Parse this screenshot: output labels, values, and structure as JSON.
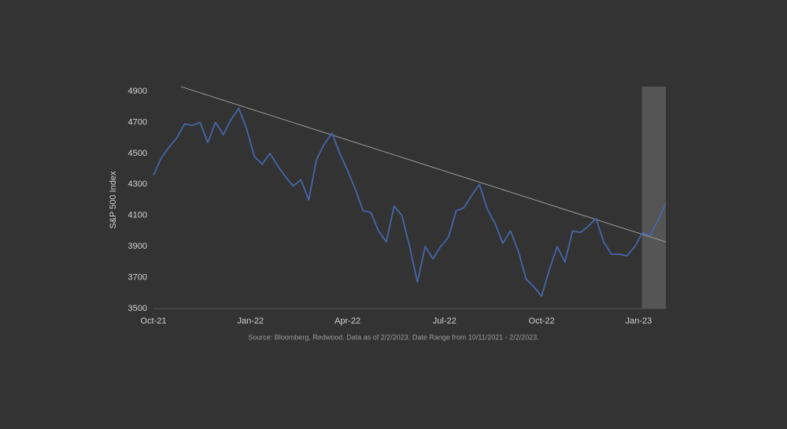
{
  "chart_data": {
    "type": "line",
    "y_label": "S&P 500 Index",
    "source": "Source: Bloomberg, Redwood. Data as of 2/2/2023. Date Range from 10/11/2021 - 2/2/2023.",
    "x": [
      0,
      0.24,
      0.48,
      0.72,
      0.96,
      1.2,
      1.44,
      1.68,
      1.92,
      2.16,
      2.4,
      2.64,
      2.88,
      3.12,
      3.36,
      3.6,
      3.84,
      4.08,
      4.32,
      4.56,
      4.8,
      5.04,
      5.28,
      5.52,
      5.76,
      6,
      6.24,
      6.48,
      6.72,
      6.96,
      7.2,
      7.44,
      7.68,
      7.92,
      8.16,
      8.4,
      8.64,
      8.88,
      9.12,
      9.36,
      9.6,
      9.84,
      10.08,
      10.32,
      10.56,
      10.8,
      11.04,
      11.28,
      11.52,
      11.76,
      12,
      12.24,
      12.48,
      12.72,
      12.96,
      13.2,
      13.44,
      13.68,
      13.92,
      14.16,
      14.4,
      14.64,
      14.88,
      15.12,
      15.36,
      15.6,
      15.84
    ],
    "series": [
      {
        "color": "#4466a8",
        "values": [
          4360,
          4470,
          4540,
          4600,
          4690,
          4680,
          4700,
          4570,
          4700,
          4620,
          4720,
          4790,
          4660,
          4480,
          4430,
          4500,
          4420,
          4350,
          4290,
          4330,
          4200,
          4460,
          4560,
          4630,
          4500,
          4390,
          4270,
          4130,
          4120,
          4000,
          3930,
          4160,
          4100,
          3900,
          3670,
          3900,
          3820,
          3900,
          3960,
          4130,
          4150,
          4230,
          4300,
          4140,
          4050,
          3920,
          4000,
          3870,
          3690,
          3640,
          3580,
          3750,
          3900,
          3800,
          4000,
          3990,
          4030,
          4080,
          3930,
          3850,
          3850,
          3840,
          3900,
          3990,
          3970,
          4070,
          4180
        ]
      }
    ],
    "trendline": {
      "color": "#9a9a9a",
      "x": [
        0.85,
        15.84
      ],
      "values": [
        4930,
        3930
      ]
    },
    "highlight": {
      "color": "#555555",
      "x": [
        15.1,
        15.84
      ]
    },
    "xlim": [
      0,
      15.84
    ],
    "xticks": [
      {
        "value": 0,
        "label": "Oct-21"
      },
      {
        "value": 3,
        "label": "Jan-22"
      },
      {
        "value": 6,
        "label": "Apr-22"
      },
      {
        "value": 9,
        "label": "Jul-22"
      },
      {
        "value": 12,
        "label": "Oct-22"
      },
      {
        "value": 15,
        "label": "Jan-23"
      }
    ],
    "ylim": [
      3500,
      4900
    ],
    "yticks": [
      3500,
      3700,
      3900,
      4100,
      4300,
      4500,
      4700,
      4900
    ]
  }
}
